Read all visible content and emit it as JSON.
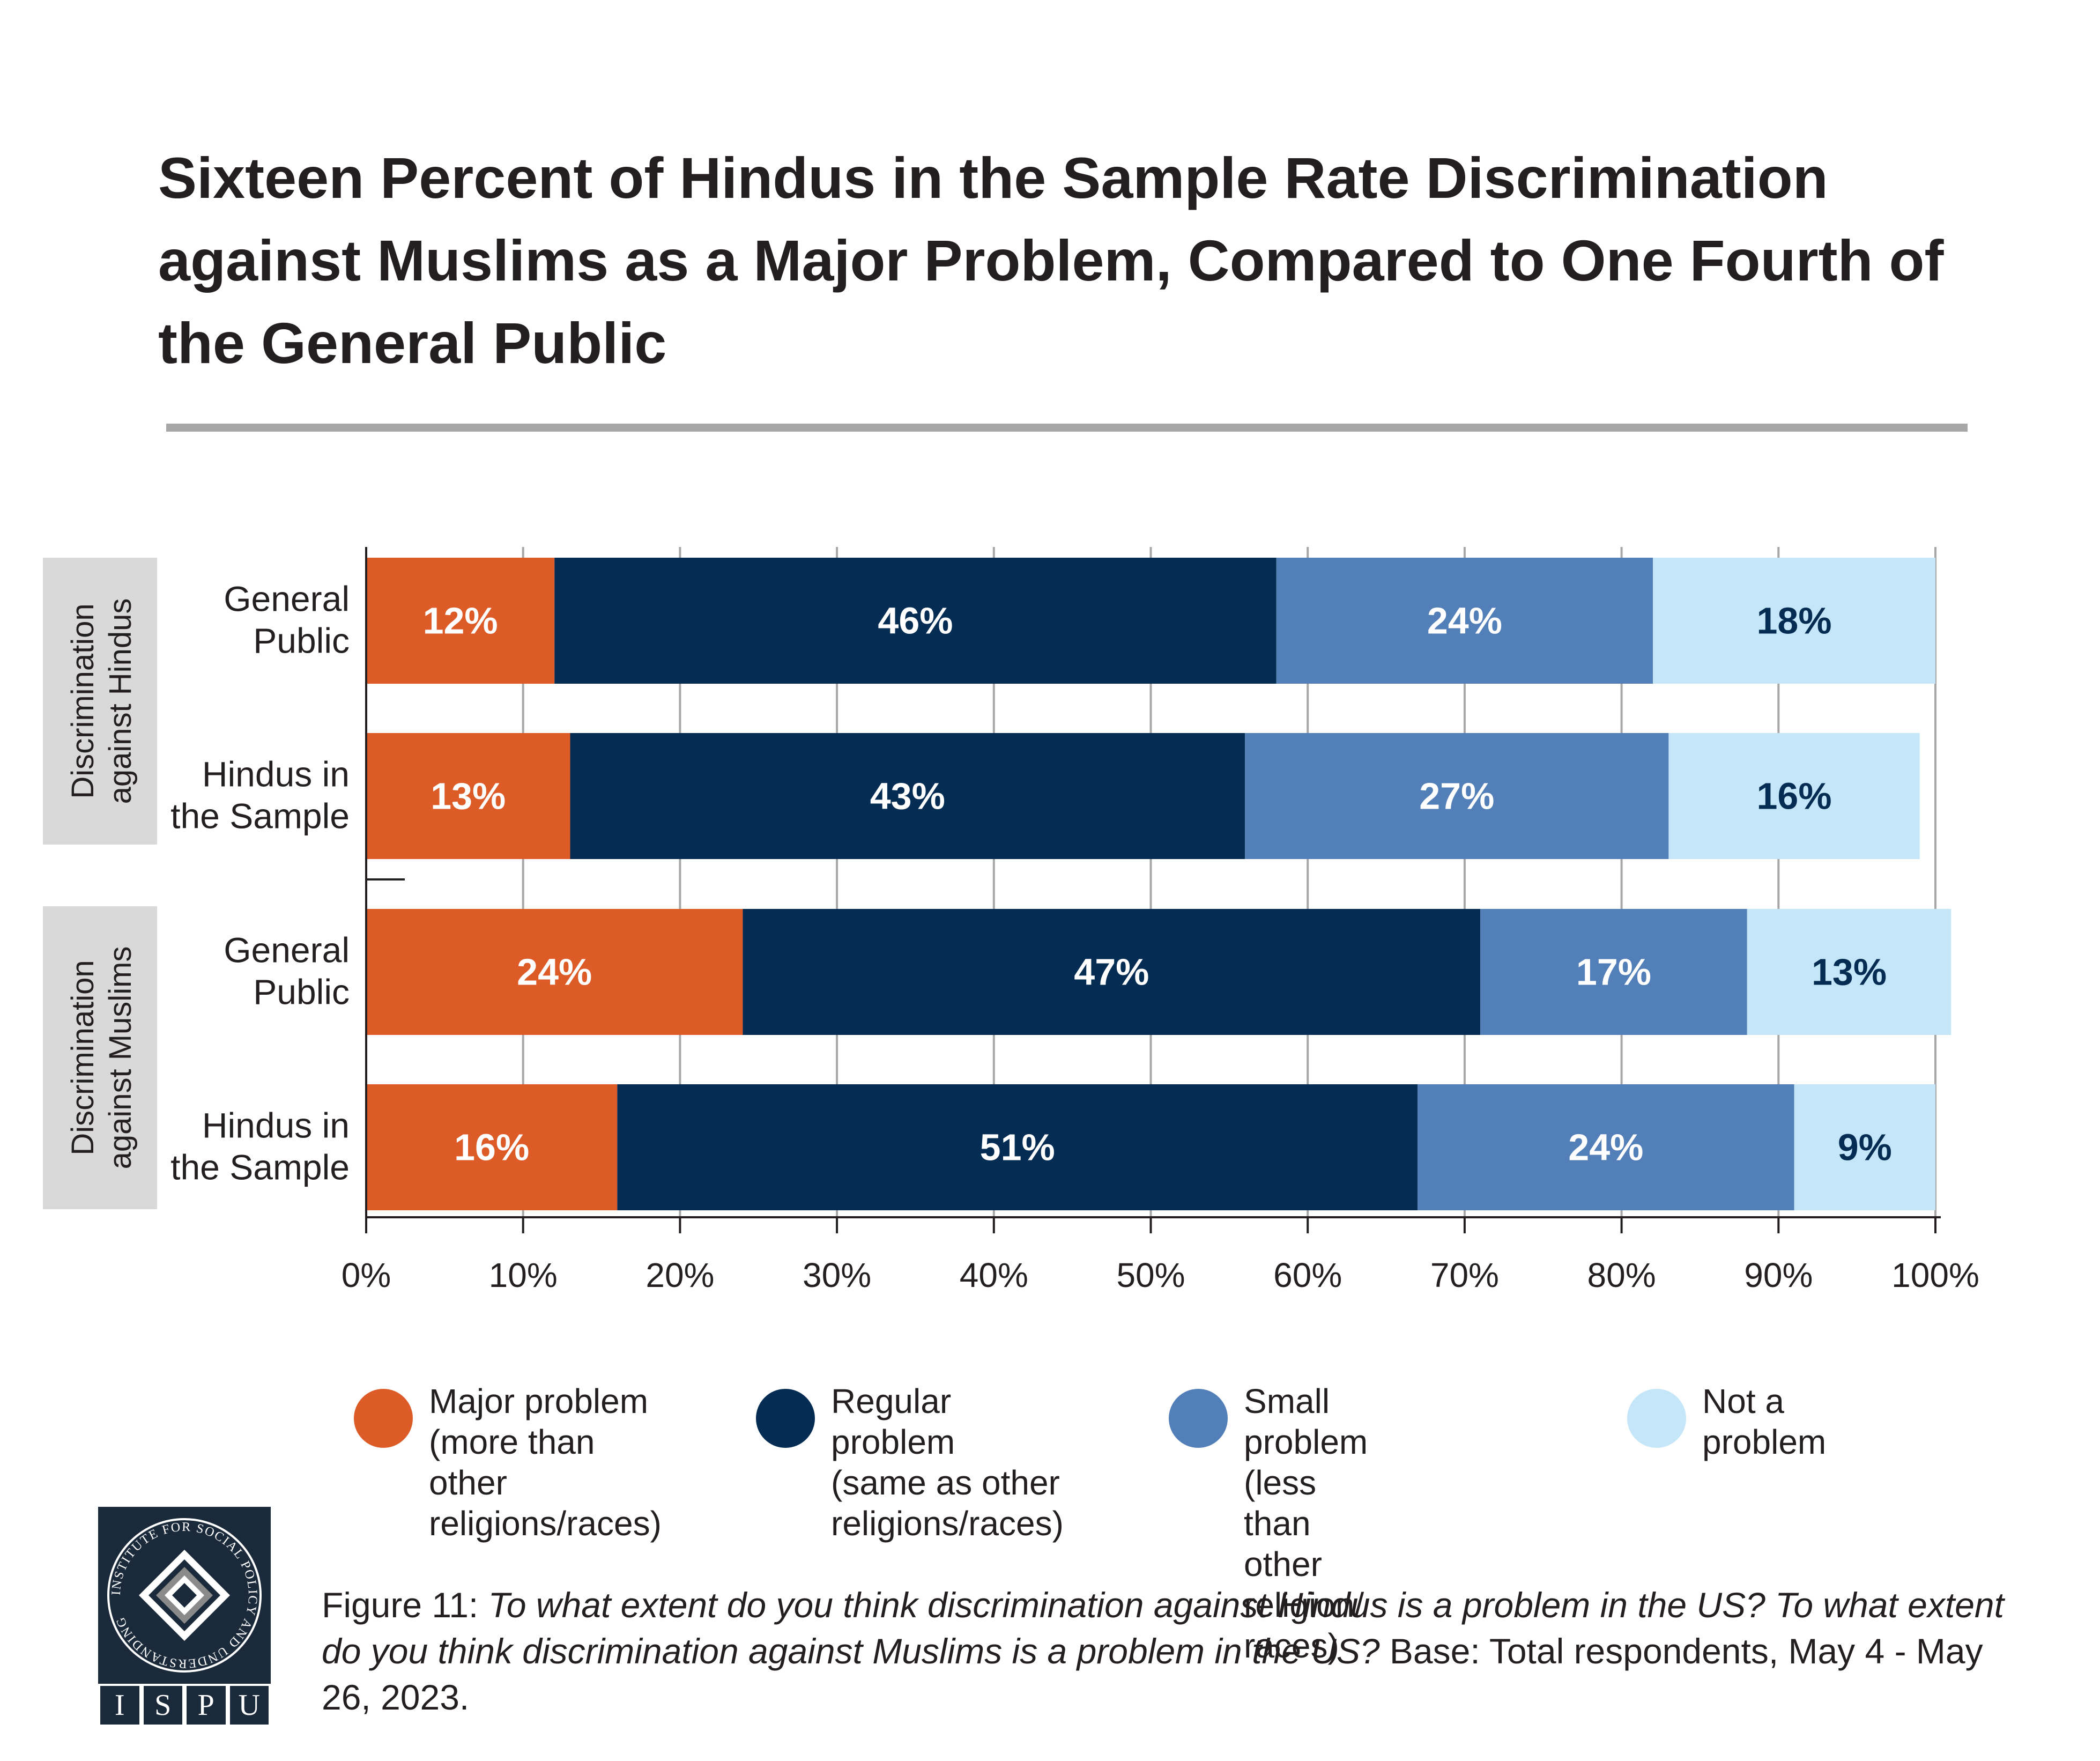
{
  "title": "Sixteen Percent of Hindus in the Sample Rate Discrimination against Muslims as a Major Problem, Compared to One Fourth of the General Public",
  "chart_data": {
    "type": "bar",
    "orientation": "horizontal",
    "stacked": true,
    "xlim": [
      0,
      100
    ],
    "x_ticks": [
      "0%",
      "10%",
      "20%",
      "30%",
      "40%",
      "50%",
      "60%",
      "70%",
      "80%",
      "90%",
      "100%"
    ],
    "grid": "vertical",
    "legend_position": "bottom",
    "groups": [
      {
        "label": "Discrimination against Hindus",
        "rows": [
          "General Public",
          "Hindus in the Sample"
        ]
      },
      {
        "label": "Discrimination against Muslims",
        "rows": [
          "General Public",
          "Hindus in the Sample"
        ]
      }
    ],
    "categories": [
      "General Public",
      "Hindus in the Sample",
      "General Public",
      "Hindus in the Sample"
    ],
    "series": [
      {
        "name": "Major problem (more than other religions/races)",
        "color": "#dd5b27",
        "label_color": "#ffffff",
        "values": [
          12,
          13,
          24,
          16
        ],
        "labels": [
          "12%",
          "13%",
          "24%",
          "16%"
        ]
      },
      {
        "name": "Regular problem (same as other religions/races)",
        "color": "#052d54",
        "label_color": "#ffffff",
        "values": [
          46,
          43,
          47,
          51
        ],
        "labels": [
          "46%",
          "43%",
          "47%",
          "51%"
        ]
      },
      {
        "name": "Small problem (less than other religion/ races)",
        "color": "#537fb8",
        "label_color": "#ffffff",
        "values": [
          24,
          27,
          17,
          24
        ],
        "labels": [
          "24%",
          "27%",
          "17%",
          "24%"
        ]
      },
      {
        "name": "Not a problem",
        "color": "#c4e6f8",
        "label_color": "#052d54",
        "values": [
          18,
          16,
          13,
          9
        ],
        "labels": [
          "18%",
          "16%",
          "13%",
          "9%"
        ]
      }
    ]
  },
  "legend": [
    {
      "label": "Major problem\n(more than other\nreligions/races)",
      "color": "#dd5b27"
    },
    {
      "label": "Regular problem\n(same as other\nreligions/races)",
      "color": "#052d54"
    },
    {
      "label": "Small problem (less\nthan other religion/\nraces)",
      "color": "#537fb8"
    },
    {
      "label": "Not a problem",
      "color": "#c4e6f8"
    }
  ],
  "logo": {
    "ring_text": "INSTITUTE FOR SOCIAL POLICY AND UNDERSTANDING",
    "letters": [
      "I",
      "S",
      "P",
      "U"
    ]
  },
  "caption": {
    "figure": "Figure 11:",
    "question": "To what extent do you think discrimination against Hindus is a problem in the US? To what extent do you think discrimination against Muslims is a problem in the US?",
    "base": "Base: Total respondents, May 4 - May 26, 2023."
  },
  "colors": {
    "axis_text": "#231f20",
    "gridline": "#a7a7a7",
    "group_box": "#d9d9d9"
  }
}
